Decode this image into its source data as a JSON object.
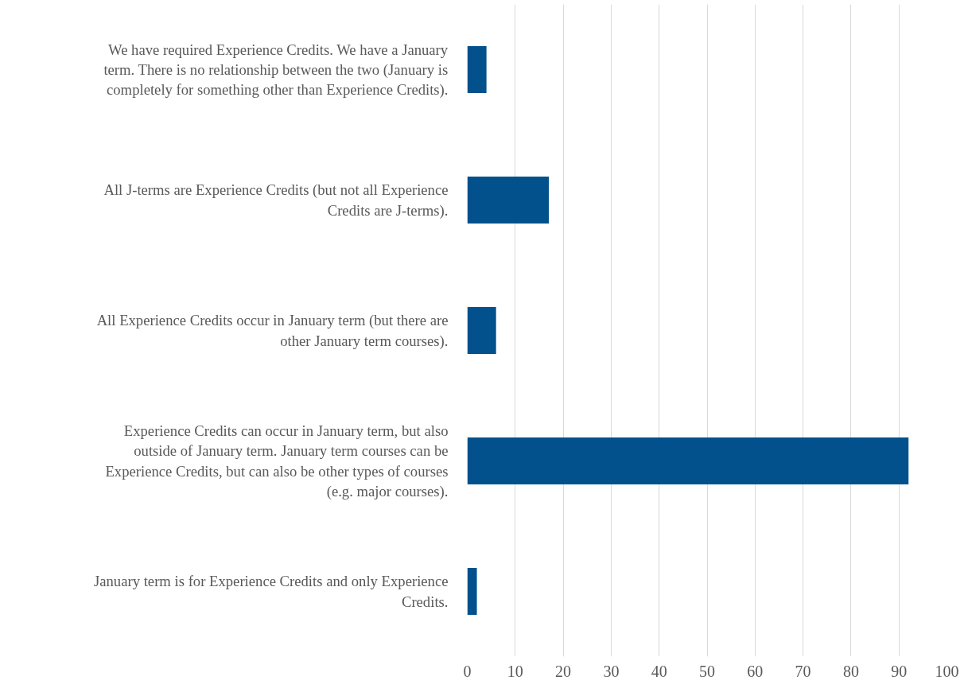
{
  "chart_data": {
    "type": "bar",
    "orientation": "horizontal",
    "categories": [
      "We have required Experience Credits. We have a January term. There is no relationship between the two (January is completely for something other than Experience Credits).",
      "All J-terms are Experience Credits (but not all Experience Credits are J-terms).",
      "All Experience Credits occur in January term (but there are other January term courses).",
      "Experience Credits can occur in January term, but also outside of January term. January term courses can be Experience Credits, but can also be other types of courses (e.g. major courses).",
      "January term is for Experience Credits and only Experience Credits."
    ],
    "values": [
      4,
      17,
      6,
      92,
      2
    ],
    "color": "#03518c",
    "xlim": [
      0,
      100
    ],
    "xticks": [
      0,
      10,
      20,
      30,
      40,
      50,
      60,
      70,
      80,
      90,
      100
    ],
    "grid": "x"
  }
}
